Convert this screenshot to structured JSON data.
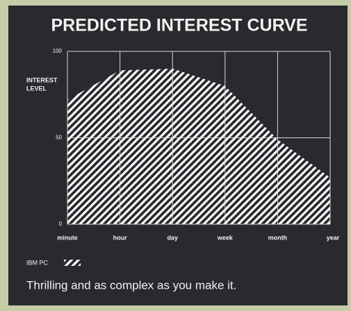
{
  "chart_data": {
    "type": "area",
    "title": "PREDICTED INTEREST CURVE",
    "y_label": [
      "INTEREST",
      "LEVEL"
    ],
    "categories": [
      "minute",
      "hour",
      "day",
      "week",
      "month",
      "year"
    ],
    "series": [
      {
        "name": "IBM PC",
        "color": "#ffffff",
        "values": [
          72,
          89,
          90,
          80,
          49,
          27
        ]
      }
    ],
    "ylim": [
      0,
      100
    ],
    "yticks": [
      0,
      50,
      100
    ],
    "grid": true,
    "fill": "hatched",
    "caption": "Thrilling and as complex as you make it."
  }
}
